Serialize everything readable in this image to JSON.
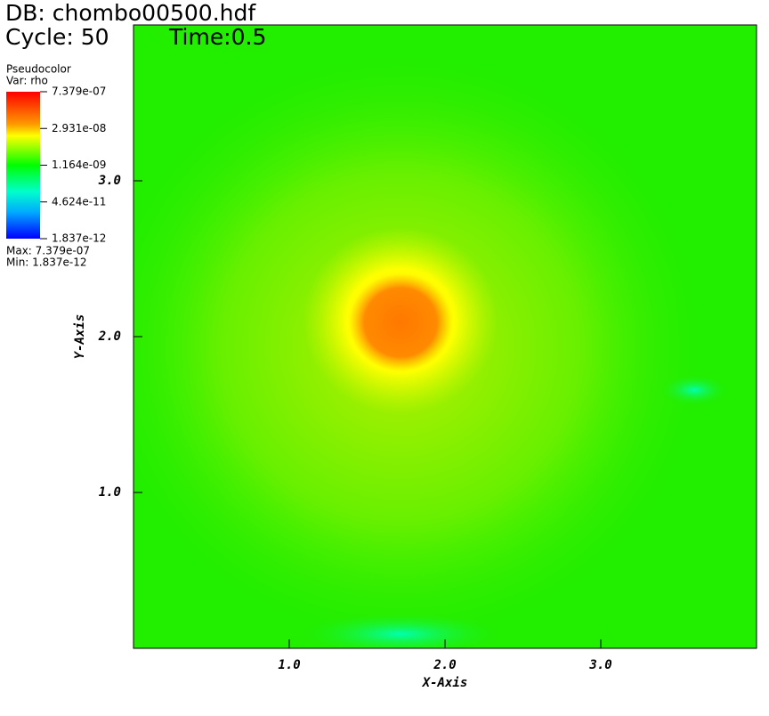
{
  "header": {
    "db": "DB: chombo00500.hdf",
    "cycle": "Cycle: 50",
    "time": "Time:0.5"
  },
  "legend": {
    "plot": "Pseudocolor",
    "var": "Var: rho",
    "scale": "log",
    "range": [
      1.837e-12,
      7.379e-07
    ],
    "ticks": [
      {
        "value": 7.379e-07,
        "label": "7.379e-07"
      },
      {
        "value": 2.931e-08,
        "label": "2.931e-08"
      },
      {
        "value": 1.164e-09,
        "label": "1.164e-09"
      },
      {
        "value": 4.624e-11,
        "label": "4.624e-11"
      },
      {
        "value": 1.837e-12,
        "label": "1.837e-12"
      }
    ],
    "max": "Max:  7.379e-07",
    "min": "Min:  1.837e-12"
  },
  "chart_data": {
    "type": "pseudocolor",
    "xlabel": "X-Axis",
    "ylabel": "Y-Axis",
    "xlim": [
      0,
      4
    ],
    "ylim": [
      0,
      4
    ],
    "xticks": [
      {
        "value": 1,
        "label": "1.0"
      },
      {
        "value": 2,
        "label": "2.0"
      },
      {
        "value": 3,
        "label": "3.0"
      }
    ],
    "yticks": [
      {
        "value": 1,
        "label": "1.0"
      },
      {
        "value": 2,
        "label": "2.0"
      },
      {
        "value": 3,
        "label": "3.0"
      }
    ]
  }
}
